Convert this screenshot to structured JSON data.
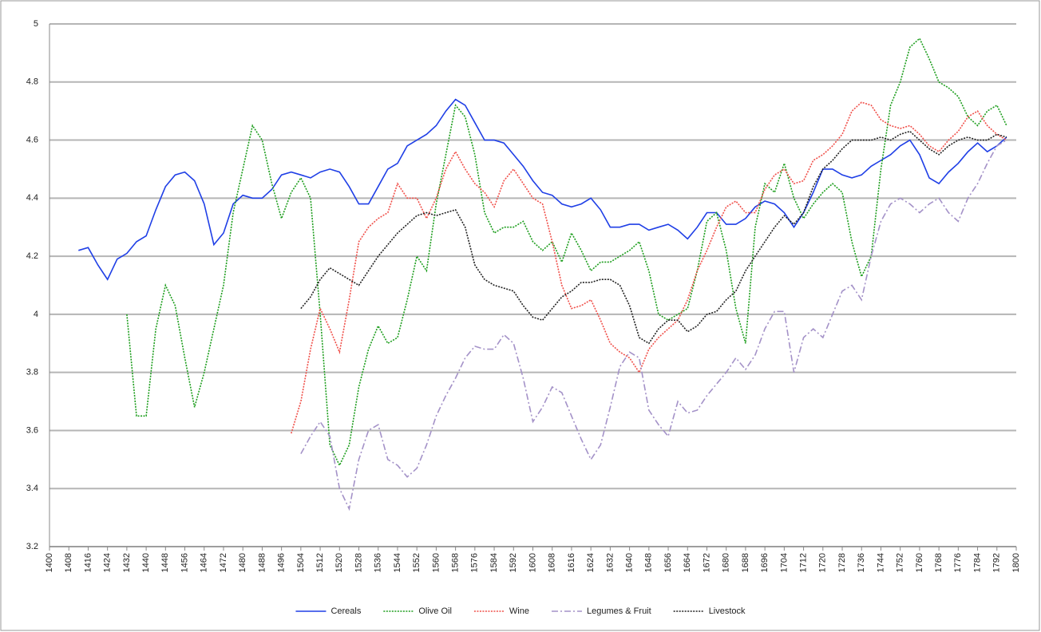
{
  "chart_data": {
    "type": "line",
    "x": [
      1400,
      1404,
      1408,
      1412,
      1416,
      1420,
      1424,
      1428,
      1432,
      1436,
      1440,
      1444,
      1448,
      1452,
      1456,
      1460,
      1464,
      1468,
      1472,
      1476,
      1480,
      1484,
      1488,
      1492,
      1496,
      1500,
      1504,
      1508,
      1512,
      1516,
      1520,
      1524,
      1528,
      1532,
      1536,
      1540,
      1544,
      1548,
      1552,
      1556,
      1560,
      1564,
      1568,
      1572,
      1576,
      1580,
      1584,
      1588,
      1592,
      1596,
      1600,
      1604,
      1608,
      1612,
      1616,
      1620,
      1624,
      1628,
      1632,
      1636,
      1640,
      1644,
      1648,
      1652,
      1656,
      1660,
      1664,
      1668,
      1672,
      1676,
      1680,
      1684,
      1688,
      1692,
      1696,
      1700,
      1704,
      1708,
      1712,
      1716,
      1720,
      1724,
      1728,
      1732,
      1736,
      1740,
      1744,
      1748,
      1752,
      1756,
      1760,
      1764,
      1768,
      1772,
      1776,
      1780,
      1784,
      1788,
      1792,
      1796
    ],
    "series": [
      {
        "name": "Cereals",
        "color": "#1f3fe6",
        "line_style": "solid",
        "values": [
          null,
          null,
          null,
          4.22,
          4.23,
          4.17,
          4.12,
          4.19,
          4.21,
          4.25,
          4.27,
          4.36,
          4.44,
          4.48,
          4.49,
          4.46,
          4.38,
          4.24,
          4.28,
          4.38,
          4.41,
          4.4,
          4.4,
          4.43,
          4.48,
          4.49,
          4.48,
          4.47,
          4.49,
          4.5,
          4.49,
          4.44,
          4.38,
          4.38,
          4.44,
          4.5,
          4.52,
          4.58,
          4.6,
          4.62,
          4.65,
          4.7,
          4.74,
          4.72,
          4.66,
          4.6,
          4.6,
          4.59,
          4.55,
          4.51,
          4.46,
          4.42,
          4.41,
          4.38,
          4.37,
          4.38,
          4.4,
          4.36,
          4.3,
          4.3,
          4.31,
          4.31,
          4.29,
          4.3,
          4.31,
          4.29,
          4.26,
          4.3,
          4.35,
          4.35,
          4.31,
          4.31,
          4.33,
          4.37,
          4.39,
          4.38,
          4.35,
          4.3,
          4.35,
          4.42,
          4.5,
          4.5,
          4.48,
          4.47,
          4.48,
          4.51,
          4.53,
          4.55,
          4.58,
          4.6,
          4.55,
          4.47,
          4.45,
          4.49,
          4.52,
          4.56,
          4.59,
          4.56,
          4.58,
          4.61
        ]
      },
      {
        "name": "Olive Oil",
        "color": "#1e9e1e",
        "line_style": "dotted",
        "values": [
          null,
          null,
          null,
          null,
          null,
          null,
          null,
          null,
          4.0,
          3.65,
          3.65,
          3.95,
          4.1,
          4.03,
          3.85,
          3.68,
          3.8,
          3.95,
          4.1,
          4.35,
          4.5,
          4.65,
          4.6,
          4.45,
          4.33,
          4.42,
          4.47,
          4.4,
          4.0,
          3.55,
          3.48,
          3.55,
          3.75,
          3.88,
          3.96,
          3.9,
          3.92,
          4.05,
          4.2,
          4.15,
          4.38,
          4.55,
          4.72,
          4.68,
          4.55,
          4.35,
          4.28,
          4.3,
          4.3,
          4.32,
          4.25,
          4.22,
          4.25,
          4.18,
          4.28,
          4.22,
          4.15,
          4.18,
          4.18,
          4.2,
          4.22,
          4.25,
          4.15,
          4.0,
          3.98,
          4.0,
          4.02,
          4.15,
          4.32,
          4.35,
          4.22,
          4.02,
          3.9,
          4.3,
          4.45,
          4.42,
          4.52,
          4.4,
          4.33,
          4.38,
          4.42,
          4.45,
          4.42,
          4.25,
          4.13,
          4.2,
          4.5,
          4.72,
          4.8,
          4.92,
          4.95,
          4.88,
          4.8,
          4.78,
          4.75,
          4.68,
          4.65,
          4.7,
          4.72,
          4.65
        ]
      },
      {
        "name": "Wine",
        "color": "#f0504a",
        "line_style": "dotted",
        "values": [
          null,
          null,
          null,
          null,
          null,
          null,
          null,
          null,
          null,
          null,
          null,
          null,
          null,
          null,
          null,
          null,
          null,
          null,
          null,
          null,
          null,
          null,
          null,
          null,
          null,
          3.59,
          3.7,
          3.88,
          4.02,
          3.95,
          3.87,
          4.05,
          4.25,
          4.3,
          4.33,
          4.35,
          4.45,
          4.4,
          4.4,
          4.33,
          4.4,
          4.5,
          4.56,
          4.5,
          4.45,
          4.42,
          4.37,
          4.46,
          4.5,
          4.45,
          4.4,
          4.38,
          4.25,
          4.1,
          4.02,
          4.03,
          4.05,
          3.98,
          3.9,
          3.87,
          3.85,
          3.8,
          3.88,
          3.92,
          3.95,
          3.98,
          4.05,
          4.15,
          4.22,
          4.3,
          4.37,
          4.39,
          4.35,
          4.35,
          4.43,
          4.48,
          4.5,
          4.45,
          4.46,
          4.53,
          4.55,
          4.58,
          4.62,
          4.7,
          4.73,
          4.72,
          4.67,
          4.65,
          4.64,
          4.65,
          4.62,
          4.58,
          4.56,
          4.6,
          4.63,
          4.68,
          4.7,
          4.65,
          4.62,
          4.6
        ]
      },
      {
        "name": "Legumes & Fruit",
        "color": "#a492c8",
        "line_style": "dashdot",
        "values": [
          null,
          null,
          null,
          null,
          null,
          null,
          null,
          null,
          null,
          null,
          null,
          null,
          null,
          null,
          null,
          null,
          null,
          null,
          null,
          null,
          null,
          null,
          null,
          null,
          null,
          null,
          3.52,
          3.58,
          3.63,
          3.58,
          3.4,
          3.33,
          3.5,
          3.6,
          3.62,
          3.5,
          3.48,
          3.44,
          3.47,
          3.55,
          3.65,
          3.72,
          3.78,
          3.85,
          3.89,
          3.88,
          3.88,
          3.93,
          3.9,
          3.78,
          3.63,
          3.68,
          3.75,
          3.73,
          3.65,
          3.57,
          3.5,
          3.55,
          3.68,
          3.82,
          3.87,
          3.85,
          3.67,
          3.62,
          3.58,
          3.7,
          3.66,
          3.67,
          3.72,
          3.76,
          3.8,
          3.85,
          3.81,
          3.86,
          3.95,
          4.01,
          4.01,
          3.8,
          3.92,
          3.95,
          3.92,
          4.0,
          4.08,
          4.1,
          4.05,
          4.2,
          4.32,
          4.38,
          4.4,
          4.38,
          4.35,
          4.38,
          4.4,
          4.35,
          4.32,
          4.4,
          4.45,
          4.52,
          4.58,
          4.6
        ]
      },
      {
        "name": "Livestock",
        "color": "#222222",
        "line_style": "dotted",
        "values": [
          null,
          null,
          null,
          null,
          null,
          null,
          null,
          null,
          null,
          null,
          null,
          null,
          null,
          null,
          null,
          null,
          null,
          null,
          null,
          null,
          null,
          null,
          null,
          null,
          null,
          null,
          4.02,
          4.06,
          4.12,
          4.16,
          4.14,
          4.12,
          4.1,
          4.15,
          4.2,
          4.24,
          4.28,
          4.31,
          4.34,
          4.35,
          4.34,
          4.35,
          4.36,
          4.3,
          4.17,
          4.12,
          4.1,
          4.09,
          4.08,
          4.03,
          3.99,
          3.98,
          4.02,
          4.06,
          4.08,
          4.11,
          4.11,
          4.12,
          4.12,
          4.1,
          4.03,
          3.92,
          3.9,
          3.95,
          3.98,
          3.98,
          3.94,
          3.96,
          4.0,
          4.01,
          4.05,
          4.08,
          4.15,
          4.2,
          4.25,
          4.3,
          4.34,
          4.31,
          4.35,
          4.44,
          4.5,
          4.53,
          4.57,
          4.6,
          4.6,
          4.6,
          4.61,
          4.6,
          4.62,
          4.63,
          4.6,
          4.57,
          4.55,
          4.58,
          4.6,
          4.61,
          4.6,
          4.6,
          4.62,
          4.61
        ]
      }
    ],
    "xlim": [
      1400,
      1800
    ],
    "xticks": [
      1400,
      1408,
      1416,
      1424,
      1432,
      1440,
      1448,
      1456,
      1464,
      1472,
      1480,
      1488,
      1496,
      1504,
      1512,
      1520,
      1528,
      1536,
      1544,
      1552,
      1560,
      1568,
      1576,
      1584,
      1592,
      1600,
      1608,
      1616,
      1624,
      1632,
      1640,
      1648,
      1656,
      1664,
      1672,
      1680,
      1688,
      1696,
      1704,
      1712,
      1720,
      1728,
      1736,
      1744,
      1752,
      1760,
      1768,
      1776,
      1784,
      1792,
      1800
    ],
    "ylim": [
      3.2,
      5
    ],
    "yticks": [
      3.2,
      3.4,
      3.6,
      3.8,
      4,
      4.2,
      4.4,
      4.6,
      4.8,
      5
    ],
    "grid": true,
    "legend": "bottom"
  }
}
